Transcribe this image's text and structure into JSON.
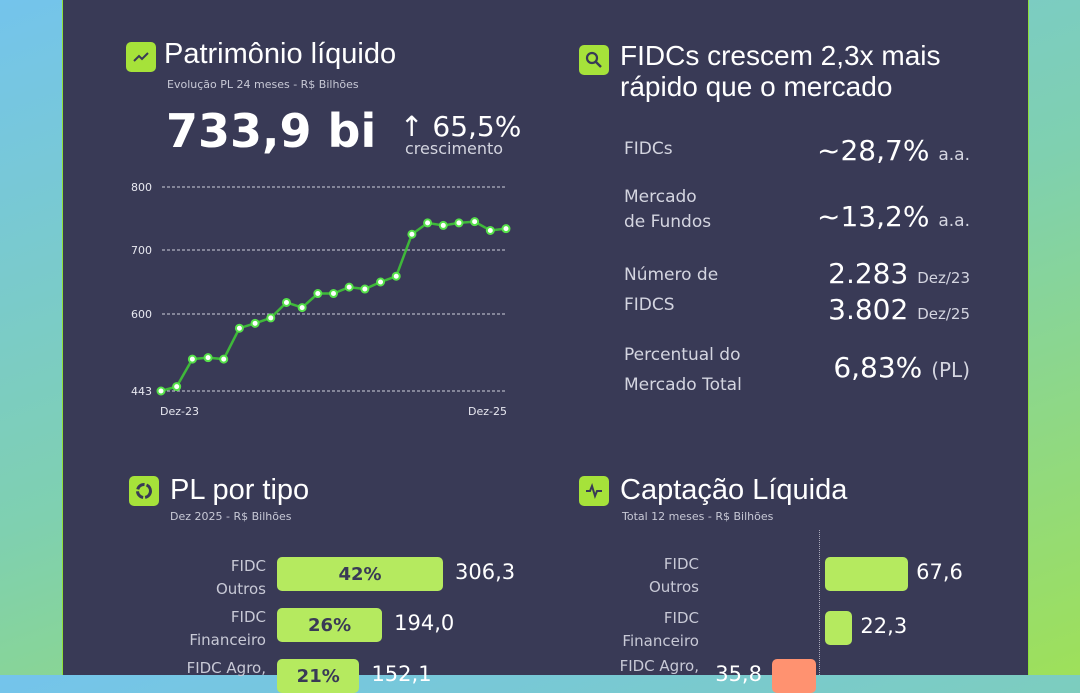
{
  "colors": {
    "panel": "#393a56",
    "accent": "#a6e23a",
    "bar": "#b5ea5f",
    "negative": "#ff9270",
    "line": "#3fb83a"
  },
  "pl": {
    "title": "Patrimônio líquido",
    "subtitle": "Evolução PL 24 meses - R$ Bilhões",
    "icon": "trending-up-icon",
    "value": "733,9 bi",
    "growth": "65,5%",
    "growth_label": "crescimento",
    "growth_icon": "arrow-up-icon"
  },
  "chart_data": [
    {
      "type": "line",
      "title": "Patrimônio líquido",
      "xlabel": "",
      "ylabel": "",
      "x_ticks": [
        "Dez-23",
        "Dez-25"
      ],
      "y_ticks": [
        443,
        600,
        700,
        800
      ],
      "ylim": [
        443,
        800
      ],
      "grid": true,
      "values": [
        443,
        452,
        508,
        511,
        508,
        571,
        581,
        592,
        618,
        610,
        632,
        632,
        642,
        639,
        650,
        659,
        725,
        743,
        739,
        743,
        745,
        731,
        733.9
      ]
    },
    {
      "type": "bar",
      "orientation": "horizontal",
      "title": "PL por tipo",
      "categories": [
        "FIDC Outros",
        "FIDC Financeiro",
        "FIDC Agro,"
      ],
      "values": [
        306.3,
        194.0,
        152.1
      ],
      "labels": [
        "306,3",
        "194,0",
        "152,1"
      ],
      "percent_labels": [
        "42%",
        "26%",
        "21%"
      ]
    },
    {
      "type": "bar",
      "orientation": "horizontal",
      "title": "Captação Líquida",
      "categories": [
        "FIDC Outros",
        "FIDC Financeiro",
        "FIDC Agro,"
      ],
      "values": [
        67.6,
        22.3,
        -35.8
      ],
      "labels": [
        "67,6",
        "22,3",
        "35,8"
      ]
    }
  ],
  "growth": {
    "title_line1": "FIDCs crescem 2,3x mais",
    "title_line2": "rápido que o mercado",
    "icon": "search-icon",
    "rows": [
      {
        "label1": "FIDCs",
        "label2": "",
        "value": "~28,7%",
        "unit": "a.a."
      },
      {
        "label1": "Mercado",
        "label2": "de Fundos",
        "value": "~13,2%",
        "unit": "a.a."
      },
      {
        "label1": "Número de",
        "label2": "FIDCS",
        "value": "2.283",
        "unit": "Dez/23",
        "value2": "3.802",
        "unit2": "Dez/25"
      },
      {
        "label1": "Percentual do",
        "label2": "Mercado Total",
        "value": "6,83%",
        "unit": "(PL)"
      }
    ]
  },
  "tipo": {
    "title": "PL por tipo",
    "subtitle": "Dez 2025 - R$ Bilhões",
    "icon": "donut-chart-icon",
    "cats": [
      {
        "l1": "FIDC",
        "l2": "Outros"
      },
      {
        "l1": "FIDC",
        "l2": "Financeiro"
      },
      {
        "l1": "FIDC Agro,",
        "l2": ""
      }
    ]
  },
  "capt": {
    "title": "Captação Líquida",
    "subtitle": "Total 12 meses - R$ Bilhões",
    "icon": "pulse-icon"
  }
}
